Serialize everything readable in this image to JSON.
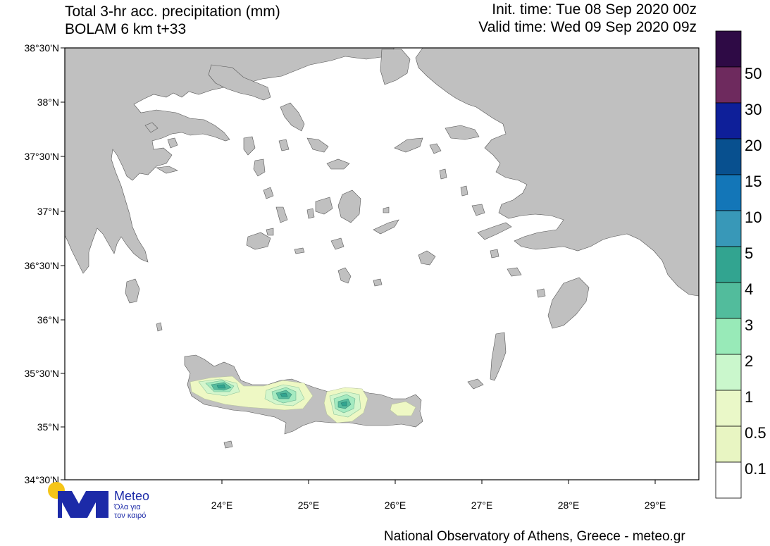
{
  "header": {
    "title_line1": "Total 3-hr acc. precipitation (mm)",
    "title_line2": "BOLAM 6 km t+33",
    "init_time": "Init. time: Tue 08 Sep 2020 00z",
    "valid_time": "Valid time: Wed 09 Sep 2020 09z"
  },
  "map": {
    "lat_labels": [
      "38°30'N",
      "38°N",
      "37°30'N",
      "37°N",
      "36°30'N",
      "36°N",
      "35°30'N",
      "35°N",
      "34°30'N"
    ],
    "lon_labels": [
      "24°E",
      "25°E",
      "26°E",
      "27°E",
      "28°E",
      "29°E"
    ],
    "land_color": "#c0c0c0",
    "sea_color": "#ffffff"
  },
  "legend": {
    "labels": [
      "50",
      "30",
      "20",
      "15",
      "10",
      "5",
      "4",
      "3",
      "2",
      "1",
      "0.5",
      "0.1"
    ],
    "colors": [
      "#2e0a45",
      "#6e2a5e",
      "#0e1f99",
      "#08508f",
      "#1376b8",
      "#3898b8",
      "#32a490",
      "#52bc9c",
      "#98eab8",
      "#caf7cc",
      "#eaf8c8",
      "#e8f5c2",
      "#ffffff"
    ]
  },
  "logo": {
    "name": "Meteo",
    "tag_line1": "Όλα για",
    "tag_line2": "τον καιρό",
    "sun_color": "#f5c518",
    "brand_color": "#1c2aa8"
  },
  "footer": {
    "credit": "National Observatory of Athens, Greece - meteo.gr"
  }
}
